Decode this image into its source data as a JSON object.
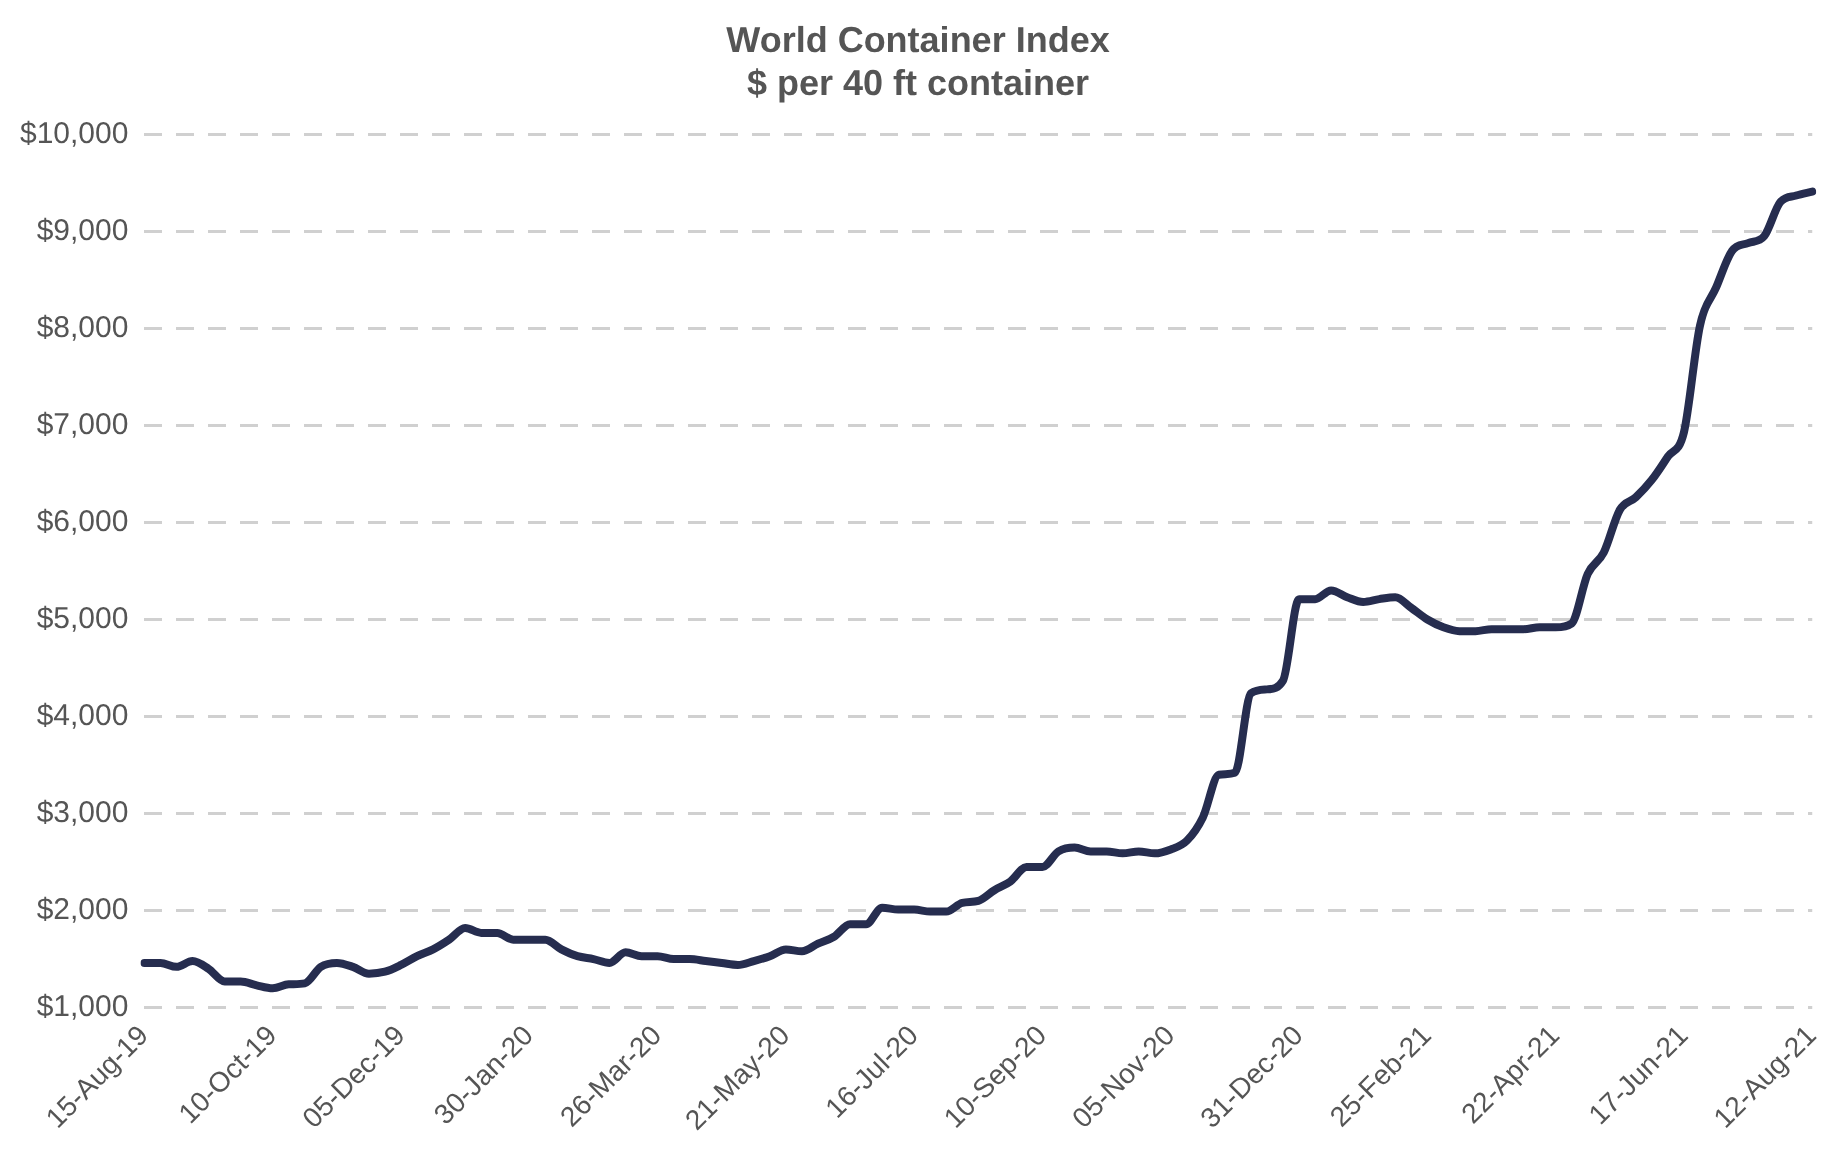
{
  "chart_data": {
    "type": "line",
    "title": "World Container Index",
    "subtitle": "$ per 40 ft container",
    "categories": [
      "15-Aug-19",
      null,
      null,
      null,
      null,
      null,
      null,
      null,
      "10-Oct-19",
      null,
      null,
      null,
      null,
      null,
      null,
      null,
      "05-Dec-19",
      null,
      null,
      null,
      null,
      null,
      null,
      null,
      "30-Jan-20",
      null,
      null,
      null,
      null,
      null,
      null,
      null,
      "26-Mar-20",
      null,
      null,
      null,
      null,
      null,
      null,
      null,
      "21-May-20",
      null,
      null,
      null,
      null,
      null,
      null,
      null,
      "16-Jul-20",
      null,
      null,
      null,
      null,
      null,
      null,
      null,
      "10-Sep-20",
      null,
      null,
      null,
      null,
      null,
      null,
      null,
      "05-Nov-20",
      null,
      null,
      null,
      null,
      null,
      null,
      null,
      "31-Dec-20",
      null,
      null,
      null,
      null,
      null,
      null,
      null,
      "25-Feb-21",
      null,
      null,
      null,
      null,
      null,
      null,
      null,
      "22-Apr-21",
      null,
      null,
      null,
      null,
      null,
      null,
      null,
      "17-Jun-21",
      null,
      null,
      null,
      null,
      null,
      null,
      null,
      "12-Aug-21"
    ],
    "series": [
      {
        "color": "#262d4f",
        "values": [
          1460,
          1460,
          1420,
          1480,
          1400,
          1270,
          1270,
          1230,
          1200,
          1240,
          1250,
          1420,
          1460,
          1420,
          1350,
          1370,
          1440,
          1530,
          1600,
          1700,
          1820,
          1770,
          1770,
          1700,
          1700,
          1700,
          1600,
          1530,
          1500,
          1460,
          1570,
          1530,
          1530,
          1500,
          1500,
          1480,
          1460,
          1440,
          1480,
          1530,
          1600,
          1580,
          1660,
          1730,
          1860,
          1860,
          2030,
          2010,
          2010,
          1990,
          1990,
          2080,
          2100,
          2210,
          2300,
          2450,
          2450,
          2610,
          2650,
          2610,
          2610,
          2590,
          2610,
          2590,
          2630,
          2720,
          2960,
          3400,
          3420,
          4240,
          4280,
          4370,
          5210,
          5210,
          5300,
          5230,
          5180,
          5210,
          5230,
          5120,
          5000,
          4920,
          4880,
          4880,
          4900,
          4900,
          4900,
          4920,
          4920,
          4960,
          5470,
          5690,
          6130,
          6260,
          6440,
          6680,
          6930,
          8030,
          8420,
          8800,
          8880,
          8950,
          9300,
          9370,
          9410
        ]
      }
    ],
    "ylim": [
      1000,
      10000
    ],
    "yticks": [
      {
        "value": 1000,
        "label": "$1,000"
      },
      {
        "value": 2000,
        "label": "$2,000"
      },
      {
        "value": 3000,
        "label": "$3,000"
      },
      {
        "value": 4000,
        "label": "$4,000"
      },
      {
        "value": 5000,
        "label": "$5,000"
      },
      {
        "value": 6000,
        "label": "$6,000"
      },
      {
        "value": 7000,
        "label": "$7,000"
      },
      {
        "value": 8000,
        "label": "$8,000"
      },
      {
        "value": 9000,
        "label": "$9,000"
      },
      {
        "value": 10000,
        "label": "$10,000"
      }
    ],
    "grid": "y",
    "legend": false,
    "marker": "none",
    "line_style": "solid"
  }
}
